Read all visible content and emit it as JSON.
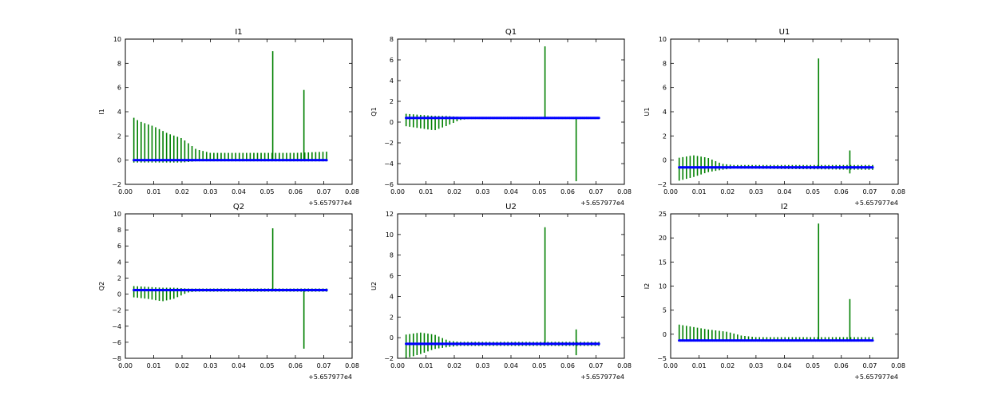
{
  "colors": {
    "spikes": "#008000",
    "baseline": "#0000ff",
    "frame": "#000000"
  },
  "chart_data": [
    {
      "type": "line",
      "title": "I1",
      "ylabel": "I1",
      "xlabel": "",
      "xlim": [
        0.0,
        0.08
      ],
      "ylim": [
        -2,
        10
      ],
      "xticks": [
        "0.00",
        "0.01",
        "0.02",
        "0.03",
        "0.04",
        "0.05",
        "0.06",
        "0.07",
        "0.08"
      ],
      "yticks": [
        "−2",
        "0",
        "2",
        "4",
        "6",
        "8",
        "10"
      ],
      "x_offset_label": "+5.657977e4",
      "baseline": 0.0,
      "spike_count": 54,
      "envelope": [
        [
          0.003,
          3.5,
          -0.2
        ],
        [
          0.005,
          3.2,
          -0.2
        ],
        [
          0.01,
          2.8,
          -0.2
        ],
        [
          0.015,
          2.2,
          -0.2
        ],
        [
          0.02,
          1.8,
          -0.2
        ],
        [
          0.025,
          0.9,
          -0.1
        ],
        [
          0.03,
          0.6,
          -0.1
        ],
        [
          0.05,
          0.6,
          -0.1
        ],
        [
          0.06,
          0.6,
          -0.1
        ],
        [
          0.071,
          0.7,
          -0.1
        ]
      ],
      "big_spikes": [
        [
          0.052,
          9.0
        ],
        [
          0.063,
          5.8
        ]
      ]
    },
    {
      "type": "line",
      "title": "Q1",
      "ylabel": "Q1",
      "xlabel": "",
      "xlim": [
        0.0,
        0.08
      ],
      "ylim": [
        -6,
        8
      ],
      "xticks": [
        "0.00",
        "0.01",
        "0.02",
        "0.03",
        "0.04",
        "0.05",
        "0.06",
        "0.07",
        "0.08"
      ],
      "yticks": [
        "−6",
        "−4",
        "−2",
        "0",
        "2",
        "4",
        "6",
        "8"
      ],
      "x_offset_label": "+5.657977e4",
      "baseline": 0.4,
      "spike_count": 54,
      "envelope": [
        [
          0.003,
          0.8,
          -0.4
        ],
        [
          0.008,
          0.7,
          -0.6
        ],
        [
          0.013,
          0.6,
          -0.8
        ],
        [
          0.017,
          0.6,
          -0.4
        ],
        [
          0.022,
          0.5,
          0.2
        ],
        [
          0.025,
          0.5,
          0.3
        ],
        [
          0.071,
          0.5,
          0.3
        ]
      ],
      "big_spikes": [
        [
          0.052,
          7.3
        ],
        [
          0.063,
          -5.7
        ]
      ]
    },
    {
      "type": "line",
      "title": "U1",
      "ylabel": "U1",
      "xlabel": "",
      "xlim": [
        0.0,
        0.08
      ],
      "ylim": [
        -2,
        10
      ],
      "xticks": [
        "0.00",
        "0.01",
        "0.02",
        "0.03",
        "0.04",
        "0.05",
        "0.06",
        "0.07",
        "0.08"
      ],
      "yticks": [
        "−2",
        "0",
        "2",
        "4",
        "6",
        "8",
        "10"
      ],
      "x_offset_label": "+5.657977e4",
      "baseline": -0.6,
      "spike_count": 54,
      "envelope": [
        [
          0.003,
          0.2,
          -1.7
        ],
        [
          0.008,
          0.4,
          -1.4
        ],
        [
          0.013,
          0.2,
          -1.0
        ],
        [
          0.018,
          -0.3,
          -0.8
        ],
        [
          0.022,
          -0.4,
          -0.7
        ],
        [
          0.071,
          -0.4,
          -0.8
        ]
      ],
      "big_spikes": [
        [
          0.052,
          8.4
        ],
        [
          0.063,
          0.8
        ],
        [
          0.063,
          -1.1
        ]
      ]
    },
    {
      "type": "line",
      "title": "Q2",
      "ylabel": "Q2",
      "xlabel": "",
      "xlim": [
        0.0,
        0.08
      ],
      "ylim": [
        -8,
        10
      ],
      "xticks": [
        "0.00",
        "0.01",
        "0.02",
        "0.03",
        "0.04",
        "0.05",
        "0.06",
        "0.07",
        "0.08"
      ],
      "yticks": [
        "−8",
        "−6",
        "−4",
        "−2",
        "0",
        "2",
        "4",
        "6",
        "8",
        "10"
      ],
      "x_offset_label": "+5.657977e4",
      "baseline": 0.5,
      "spike_count": 54,
      "envelope": [
        [
          0.003,
          1.0,
          -0.4
        ],
        [
          0.008,
          0.9,
          -0.6
        ],
        [
          0.013,
          0.8,
          -0.9
        ],
        [
          0.017,
          0.8,
          -0.6
        ],
        [
          0.022,
          0.7,
          0.2
        ],
        [
          0.025,
          0.7,
          0.3
        ],
        [
          0.071,
          0.7,
          0.3
        ]
      ],
      "big_spikes": [
        [
          0.052,
          8.2
        ],
        [
          0.063,
          -6.8
        ]
      ]
    },
    {
      "type": "line",
      "title": "U2",
      "ylabel": "U2",
      "xlabel": "",
      "xlim": [
        0.0,
        0.08
      ],
      "ylim": [
        -2,
        12
      ],
      "xticks": [
        "0.00",
        "0.01",
        "0.02",
        "0.03",
        "0.04",
        "0.05",
        "0.06",
        "0.07",
        "0.08"
      ],
      "yticks": [
        "−2",
        "0",
        "2",
        "4",
        "6",
        "8",
        "10",
        "12"
      ],
      "x_offset_label": "+5.657977e4",
      "baseline": -0.6,
      "spike_count": 54,
      "envelope": [
        [
          0.003,
          0.3,
          -2.0
        ],
        [
          0.008,
          0.5,
          -1.6
        ],
        [
          0.013,
          0.3,
          -1.1
        ],
        [
          0.018,
          -0.3,
          -0.9
        ],
        [
          0.022,
          -0.4,
          -0.8
        ],
        [
          0.071,
          -0.4,
          -0.8
        ]
      ],
      "big_spikes": [
        [
          0.052,
          10.7
        ],
        [
          0.063,
          0.8
        ],
        [
          0.063,
          -1.7
        ]
      ]
    },
    {
      "type": "line",
      "title": "I2",
      "ylabel": "I2",
      "xlabel": "",
      "xlim": [
        0.0,
        0.08
      ],
      "ylim": [
        -5,
        25
      ],
      "xticks": [
        "0.00",
        "0.01",
        "0.02",
        "0.03",
        "0.04",
        "0.05",
        "0.06",
        "0.07",
        "0.08"
      ],
      "yticks": [
        "−5",
        "0",
        "5",
        "10",
        "15",
        "20",
        "25"
      ],
      "x_offset_label": "+5.657977e4",
      "baseline": -1.3,
      "spike_count": 54,
      "envelope": [
        [
          0.003,
          2.0,
          -1.5
        ],
        [
          0.008,
          1.5,
          -1.5
        ],
        [
          0.013,
          1.0,
          -1.5
        ],
        [
          0.02,
          0.5,
          -1.5
        ],
        [
          0.025,
          -0.3,
          -1.5
        ],
        [
          0.03,
          -0.6,
          -1.5
        ],
        [
          0.071,
          -0.6,
          -1.5
        ]
      ],
      "big_spikes": [
        [
          0.052,
          23.0
        ],
        [
          0.063,
          7.3
        ]
      ]
    }
  ]
}
